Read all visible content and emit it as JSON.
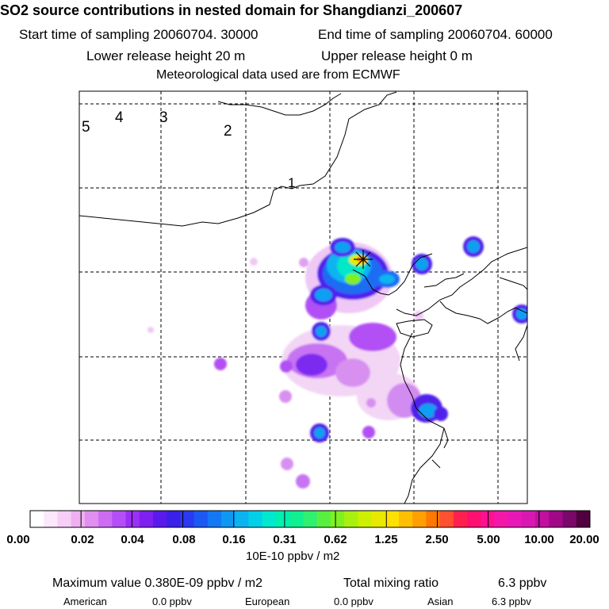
{
  "header": {
    "title": "SO2 source contributions in nested domain for Shangdianzi_200607",
    "start_time": "Start time of sampling 20060704. 30000",
    "end_time": "End time of sampling 20060704. 60000",
    "lower_release": "Lower release height   20 m",
    "upper_release": "Upper release height    0 m",
    "met_data": "Meteorological data used are from ECMWF"
  },
  "map": {
    "contour_labels": [
      "5",
      "4",
      "3",
      "2",
      "1"
    ],
    "station_marker": "asterisk-icon"
  },
  "colorbar": {
    "unit": "10E-10 ppbv / m2",
    "tick_labels": [
      "0.00",
      "0.02",
      "0.04",
      "0.08",
      "0.16",
      "0.31",
      "0.62",
      "1.25",
      "2.50",
      "5.00",
      "10.00",
      "20.00"
    ],
    "colors": [
      "#ffffff",
      "#fbe8fb",
      "#f6cef6",
      "#eeb0f0",
      "#e08ff0",
      "#cd6cf3",
      "#b44ef7",
      "#9b30f5",
      "#7d20f0",
      "#5a1aec",
      "#3a20e8",
      "#2a3af0",
      "#1c58f4",
      "#1478f4",
      "#0e98f2",
      "#0ab4f0",
      "#00d0e8",
      "#00e8d0",
      "#00f0b0",
      "#10f090",
      "#30f070",
      "#58f040",
      "#80f020",
      "#a8f010",
      "#cdf000",
      "#e8e800",
      "#ffe000",
      "#ffc000",
      "#ffa000",
      "#ff7800",
      "#ff5030",
      "#ff2050",
      "#ff1070",
      "#ff1090",
      "#f418a8",
      "#e818b8",
      "#d818b0",
      "#c010a0",
      "#a00888",
      "#7a0868",
      "#500040"
    ]
  },
  "footer": {
    "max_value": "Maximum value  0.380E-09 ppbv / m2",
    "total_label": "Total mixing ratio",
    "total_value": "6.3 ppbv",
    "regions": [
      {
        "name": "American",
        "value": "0.0 ppbv"
      },
      {
        "name": "European",
        "value": "0.0 ppbv"
      },
      {
        "name": "Asian",
        "value": "6.3 ppbv"
      }
    ]
  }
}
